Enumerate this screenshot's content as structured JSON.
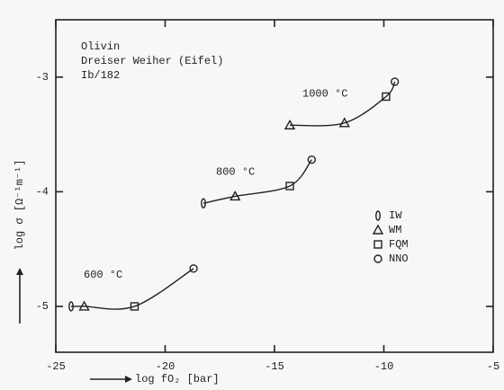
{
  "chart_data": {
    "type": "scatter",
    "annotations": [
      "Olivin",
      "Dreiser Weiher (Eifel)",
      "Ib/182"
    ],
    "xlabel": "log fO₂ [bar]",
    "ylabel": "log σ [Ω⁻¹m⁻¹]",
    "xlim": [
      -25,
      -5
    ],
    "xticks": [
      -25,
      -20,
      -15,
      -10,
      -5
    ],
    "ylim": [
      -5.4,
      -2.5
    ],
    "yticks": [
      -5,
      -4,
      -3
    ],
    "color": "#222222",
    "legend_position": "right",
    "legend": [
      {
        "label": "IW",
        "marker": "diamond"
      },
      {
        "label": "WM",
        "marker": "triangle"
      },
      {
        "label": "FQM",
        "marker": "square"
      },
      {
        "label": "NNO",
        "marker": "circle"
      }
    ],
    "series": [
      {
        "name": "600 °C",
        "x": [
          -24.3,
          -23.7,
          -21.4,
          -18.7
        ],
        "values": [
          -5.0,
          -5.0,
          -5.0,
          -4.67
        ],
        "markers": [
          0,
          1,
          2,
          3
        ]
      },
      {
        "name": "800 °C",
        "x": [
          -18.25,
          -16.8,
          -14.3,
          -13.3
        ],
        "values": [
          -4.1,
          -4.04,
          -3.95,
          -3.72
        ],
        "markers": [
          0,
          1,
          2,
          3
        ]
      },
      {
        "name": "1000 °C",
        "x": [
          -14.3,
          -11.8,
          -9.9,
          -9.5
        ],
        "values": [
          -3.42,
          -3.4,
          -3.17,
          -3.04
        ],
        "markers": [
          1,
          1,
          2,
          3
        ]
      }
    ]
  }
}
